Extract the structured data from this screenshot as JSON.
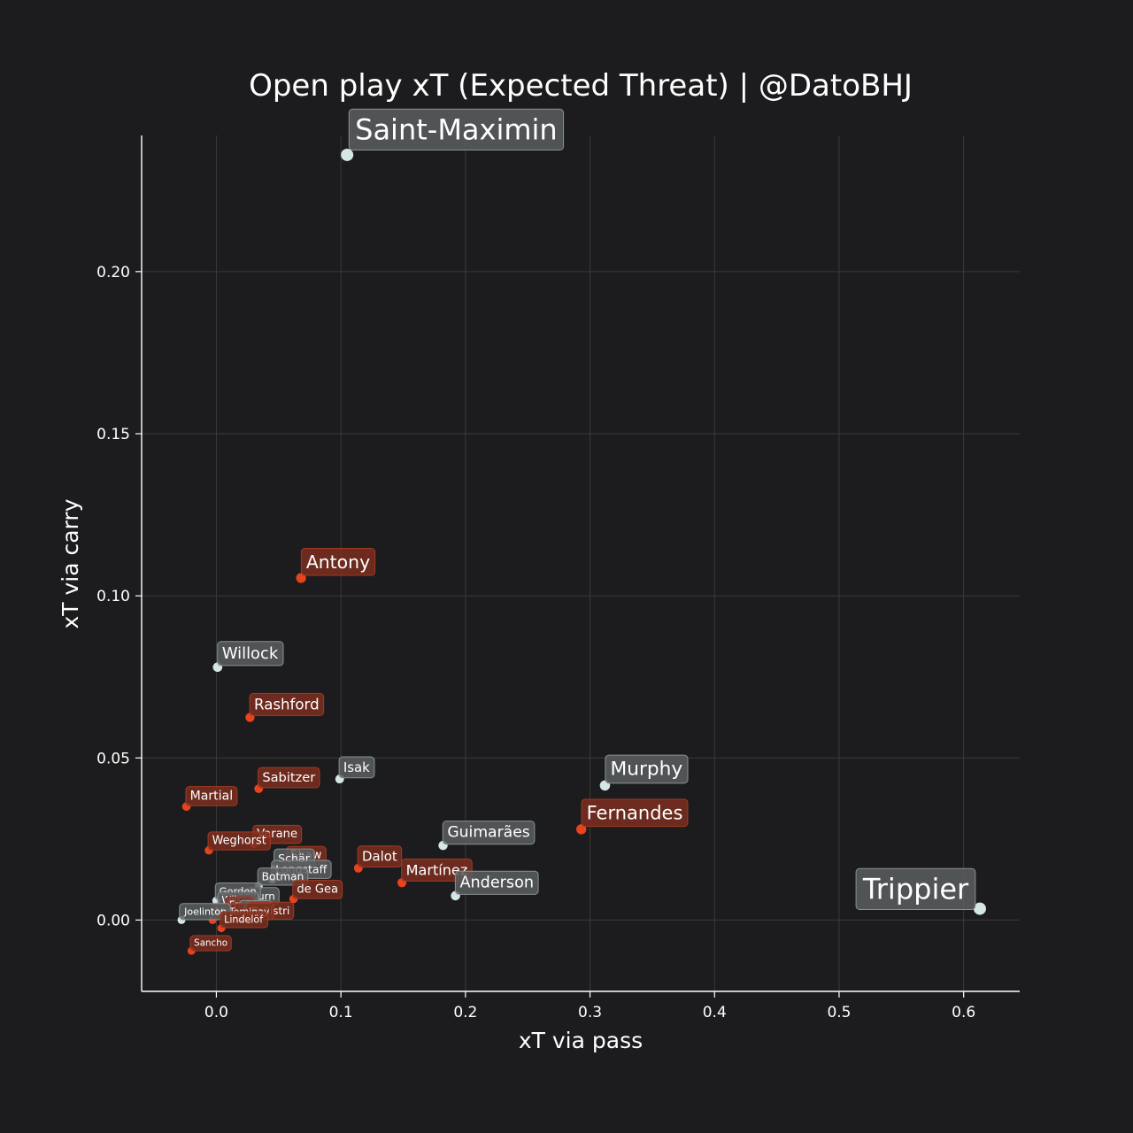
{
  "chart_data": {
    "type": "scatter",
    "title": "Open play xT (Expected Threat) | @DatoBHJ",
    "xlabel": "xT via pass",
    "ylabel": "xT via carry",
    "xlim": [
      -0.06,
      0.645
    ],
    "ylim": [
      -0.022,
      0.242
    ],
    "xticks": [
      0.0,
      0.1,
      0.2,
      0.3,
      0.4,
      0.5,
      0.6
    ],
    "xtick_labels": [
      "0.0",
      "0.1",
      "0.2",
      "0.3",
      "0.4",
      "0.5",
      "0.6"
    ],
    "yticks": [
      0.0,
      0.05,
      0.1,
      0.15,
      0.2
    ],
    "ytick_labels": [
      "0.00",
      "0.05",
      "0.10",
      "0.15",
      "0.20"
    ],
    "grid": true,
    "colors": {
      "background": "#1c1c1e",
      "team_a": "#e8431c",
      "team_a_label": "#7a2e1f",
      "team_b": "#d5e6e6",
      "team_b_label": "#5a5e60",
      "grid": "#3a3a3c",
      "axis": "#ffffff",
      "text": "#ffffff"
    },
    "points": [
      {
        "name": "Saint-Maximin",
        "x": 0.105,
        "y": 0.236,
        "team": "b"
      },
      {
        "name": "Antony",
        "x": 0.068,
        "y": 0.1055,
        "team": "a"
      },
      {
        "name": "Willock",
        "x": 0.001,
        "y": 0.078,
        "team": "b"
      },
      {
        "name": "Rashford",
        "x": 0.027,
        "y": 0.0625,
        "team": "a"
      },
      {
        "name": "Isak",
        "x": 0.099,
        "y": 0.0435,
        "team": "b"
      },
      {
        "name": "Murphy",
        "x": 0.312,
        "y": 0.0415,
        "team": "b"
      },
      {
        "name": "Sabitzer",
        "x": 0.034,
        "y": 0.0405,
        "team": "a"
      },
      {
        "name": "Martial",
        "x": -0.024,
        "y": 0.035,
        "team": "a"
      },
      {
        "name": "Fernandes",
        "x": 0.293,
        "y": 0.028,
        "team": "a"
      },
      {
        "name": "Varane",
        "x": 0.03,
        "y": 0.0235,
        "team": "a"
      },
      {
        "name": "Guimarães",
        "x": 0.182,
        "y": 0.023,
        "team": "b"
      },
      {
        "name": "Weghorst",
        "x": -0.006,
        "y": 0.0215,
        "team": "a"
      },
      {
        "name": "Shaw",
        "x": 0.057,
        "y": 0.017,
        "team": "a"
      },
      {
        "name": "Dalot",
        "x": 0.114,
        "y": 0.016,
        "team": "a"
      },
      {
        "name": "Schär",
        "x": 0.047,
        "y": 0.016,
        "team": "b"
      },
      {
        "name": "Longstaff",
        "x": 0.045,
        "y": 0.0125,
        "team": "b"
      },
      {
        "name": "Botman",
        "x": 0.034,
        "y": 0.0105,
        "team": "b"
      },
      {
        "name": "Martínez",
        "x": 0.149,
        "y": 0.0115,
        "team": "a"
      },
      {
        "name": "Anderson",
        "x": 0.192,
        "y": 0.0075,
        "team": "b"
      },
      {
        "name": "de Gea",
        "x": 0.062,
        "y": 0.0065,
        "team": "a"
      },
      {
        "name": "Burn",
        "x": 0.025,
        "y": 0.0045,
        "team": "b"
      },
      {
        "name": "Gordon",
        "x": 0.0,
        "y": 0.006,
        "team": "b"
      },
      {
        "name": "Wilson",
        "x": 0.002,
        "y": 0.0035,
        "team": "b"
      },
      {
        "name": "Fred",
        "x": 0.008,
        "y": 0.002,
        "team": "a"
      },
      {
        "name": "Pope",
        "x": 0.019,
        "y": 0.0005,
        "team": "b"
      },
      {
        "name": "Pellistri",
        "x": 0.026,
        "y": 0.0,
        "team": "a"
      },
      {
        "name": "McTominay",
        "x": -0.003,
        "y": 0.0,
        "team": "a"
      },
      {
        "name": "Joelinton",
        "x": -0.028,
        "y": 0.0,
        "team": "b"
      },
      {
        "name": "Lindelöf",
        "x": 0.004,
        "y": -0.0025,
        "team": "a"
      },
      {
        "name": "Sancho",
        "x": -0.02,
        "y": -0.0095,
        "team": "a"
      },
      {
        "name": "Trippier",
        "x": 0.613,
        "y": 0.0035,
        "team": "b"
      }
    ]
  }
}
